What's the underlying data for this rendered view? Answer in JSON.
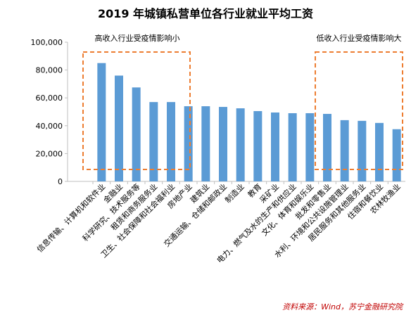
{
  "chart_data": {
    "type": "bar",
    "title": "2019 年城镇私营单位各行业就业平均工资",
    "xlabel": "",
    "ylabel": "",
    "ylim": [
      0,
      100000
    ],
    "yticks": [
      "0",
      "20,000",
      "40,000",
      "60,000",
      "80,000",
      "100,000"
    ],
    "ytick_values": [
      0,
      20000,
      40000,
      60000,
      80000,
      100000
    ],
    "grid": false,
    "legend": "none",
    "categories": [
      "信息传输、计算机和软件业",
      "金融业",
      "科学研究、技术服务等",
      "租赁和商务服务业",
      "卫生、社会保障和社会福利业",
      "房地产业",
      "建筑业",
      "交通运输、仓储和邮政业",
      "制造业",
      "教育",
      "采矿业",
      "电力、燃气及水的生产和供应业",
      "文化、体育和娱乐业",
      "批发和零售业",
      "水利、环境和公共设施管理业",
      "居民服务和其他服务业",
      "住宿和餐饮业",
      "农林牧渔业"
    ],
    "values": [
      85000,
      76000,
      67500,
      57000,
      57000,
      54000,
      54000,
      53500,
      52500,
      50500,
      49500,
      49000,
      49000,
      48500,
      44000,
      43500,
      42000,
      37500
    ],
    "annotations": [
      "高收入行业受疫情影响小",
      "低收入行业受疫情影响大"
    ]
  },
  "colors": {
    "bar": "#5b9bd5",
    "box": "#ed7d31",
    "source": "#c00000"
  },
  "source": {
    "label": "资料来源：",
    "text": "Wind，苏宁金融研究院"
  }
}
